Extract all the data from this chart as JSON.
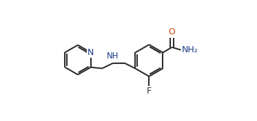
{
  "bg_color": "#ffffff",
  "bond_color": "#2d2d2d",
  "N_color": "#1a3a8a",
  "O_color": "#cc4400",
  "F_color": "#2d2d2d",
  "line_width": 1.5,
  "dbo": 0.012,
  "figsize": [
    3.73,
    1.76
  ],
  "dpi": 100,
  "xlim": [
    0.0,
    1.0
  ],
  "ylim": [
    0.05,
    0.95
  ]
}
